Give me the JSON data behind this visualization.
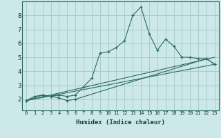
{
  "xlabel": "Humidex (Indice chaleur)",
  "ylabel": "",
  "xlim": [
    -0.5,
    23.5
  ],
  "ylim": [
    1.2,
    9.0
  ],
  "background_color": "#cce8e8",
  "grid_color": "#aacccc",
  "line_color": "#2a6a60",
  "series0": {
    "x": [
      0,
      1,
      2,
      3,
      4,
      5,
      6,
      7,
      8,
      9,
      10,
      11,
      12,
      13,
      14,
      15,
      16,
      17,
      18,
      19,
      20,
      21,
      22,
      23
    ],
    "y": [
      1.9,
      2.2,
      2.3,
      2.2,
      2.3,
      2.2,
      2.3,
      2.9,
      3.5,
      5.3,
      5.4,
      5.7,
      6.2,
      8.0,
      8.6,
      6.7,
      5.5,
      6.3,
      5.8,
      5.0,
      5.0,
      4.9,
      4.9,
      4.5
    ]
  },
  "series1": {
    "x": [
      0,
      2,
      3,
      4,
      5,
      6,
      22,
      23
    ],
    "y": [
      1.9,
      2.3,
      2.2,
      2.1,
      1.9,
      2.0,
      4.9,
      4.5
    ]
  },
  "series2": {
    "x": [
      0,
      23
    ],
    "y": [
      1.9,
      4.5
    ]
  },
  "series3": {
    "x": [
      0,
      23
    ],
    "y": [
      1.9,
      5.0
    ]
  },
  "yticks": [
    2,
    3,
    4,
    5,
    6,
    7,
    8
  ],
  "xticks": [
    0,
    1,
    2,
    3,
    4,
    5,
    6,
    7,
    8,
    9,
    10,
    11,
    12,
    13,
    14,
    15,
    16,
    17,
    18,
    19,
    20,
    21,
    22,
    23
  ]
}
